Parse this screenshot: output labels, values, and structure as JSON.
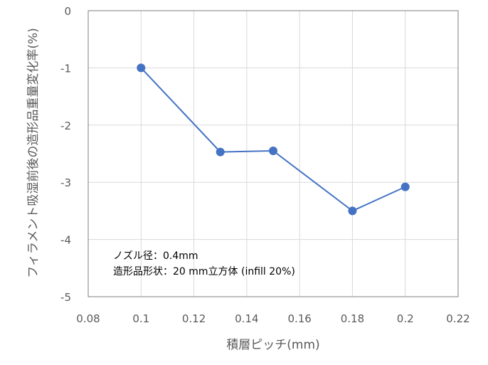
{
  "chart_data": {
    "type": "line",
    "title": "",
    "xlabel": "積層ピッチ(mm)",
    "ylabel": "フィラメント吸湿前後の造形品重量変化率(%)",
    "xlim": [
      0.08,
      0.22
    ],
    "ylim": [
      -5,
      0
    ],
    "xticks": [
      0.08,
      0.1,
      0.12,
      0.14,
      0.16,
      0.18,
      0.2,
      0.22
    ],
    "yticks": [
      0,
      -1,
      -2,
      -3,
      -4,
      -5
    ],
    "xtick_labels": [
      "0.08",
      "0.1",
      "0.12",
      "0.14",
      "0.16",
      "0.18",
      "0.2",
      "0.22"
    ],
    "ytick_labels": [
      "0",
      "-1",
      "-2",
      "-3",
      "-4",
      "-5"
    ],
    "grid": true,
    "legend": false,
    "series": [
      {
        "x": [
          0.1,
          0.13,
          0.15,
          0.18,
          0.2
        ],
        "y": [
          -1.0,
          -2.47,
          -2.45,
          -3.5,
          -3.08
        ],
        "color": "#4472C4",
        "marker": "circle"
      }
    ],
    "annotations": [
      "ノズル径：0.4mm",
      "造形品形状：20 mm立方体 (infill 20%)"
    ]
  }
}
